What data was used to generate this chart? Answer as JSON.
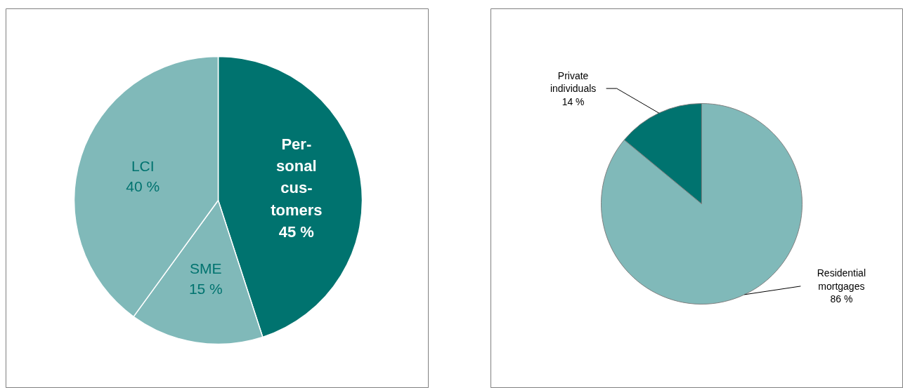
{
  "chart_data": [
    {
      "type": "pie",
      "categories": [
        "Per- sonal cus- tomers",
        "SME",
        "LCI"
      ],
      "values": [
        45,
        15,
        40
      ],
      "colors": [
        "#00736f",
        "#80b9b9",
        "#80b9b9"
      ],
      "value_labels": [
        "45 %",
        "15 %",
        "40 %"
      ]
    },
    {
      "type": "pie",
      "categories": [
        "Residential mortgages",
        "Private individuals"
      ],
      "values": [
        86,
        14
      ],
      "colors": [
        "#80b9b9",
        "#00736f"
      ],
      "value_labels": [
        "86 %",
        "14 %"
      ]
    }
  ]
}
